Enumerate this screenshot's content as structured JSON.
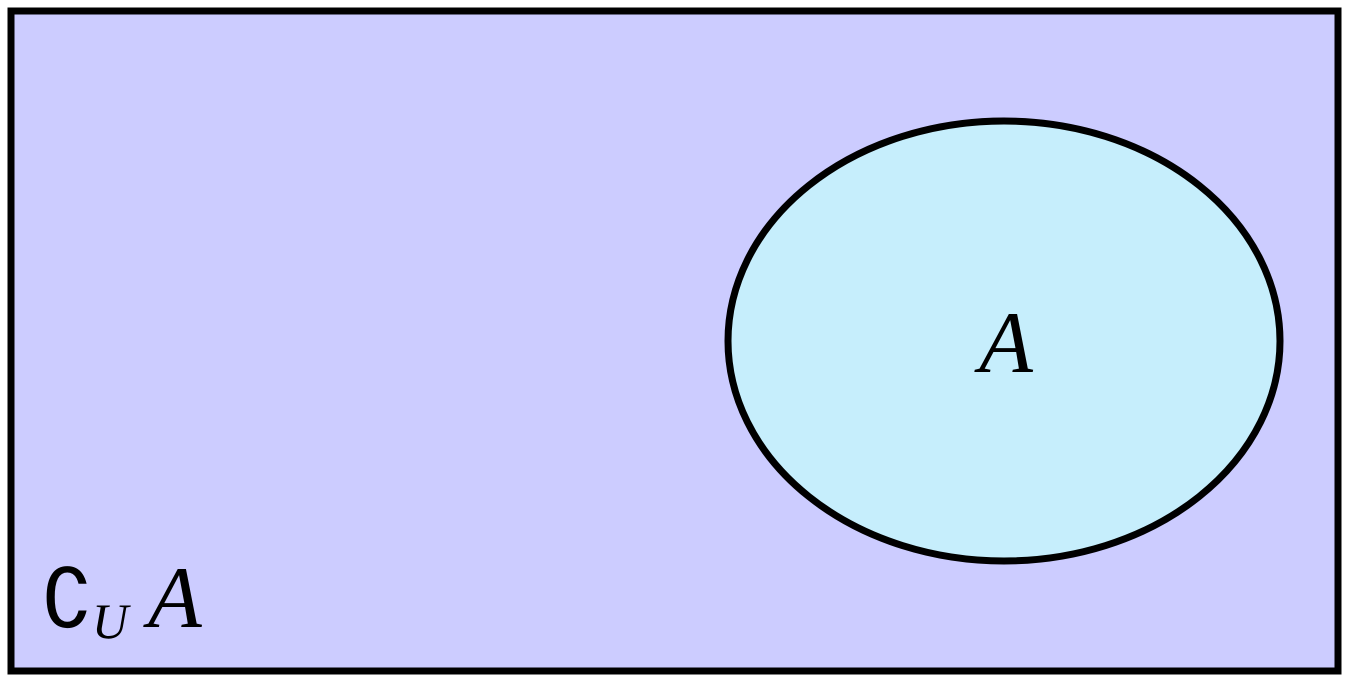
{
  "diagram": {
    "universe": {
      "fill": "#ccccff",
      "stroke": "#000000",
      "complement_label": {
        "symbol": "∁",
        "subscript": "U",
        "set": "A"
      }
    },
    "set_a": {
      "label": "A",
      "fill": "#c6eefc",
      "stroke": "#000000"
    }
  }
}
